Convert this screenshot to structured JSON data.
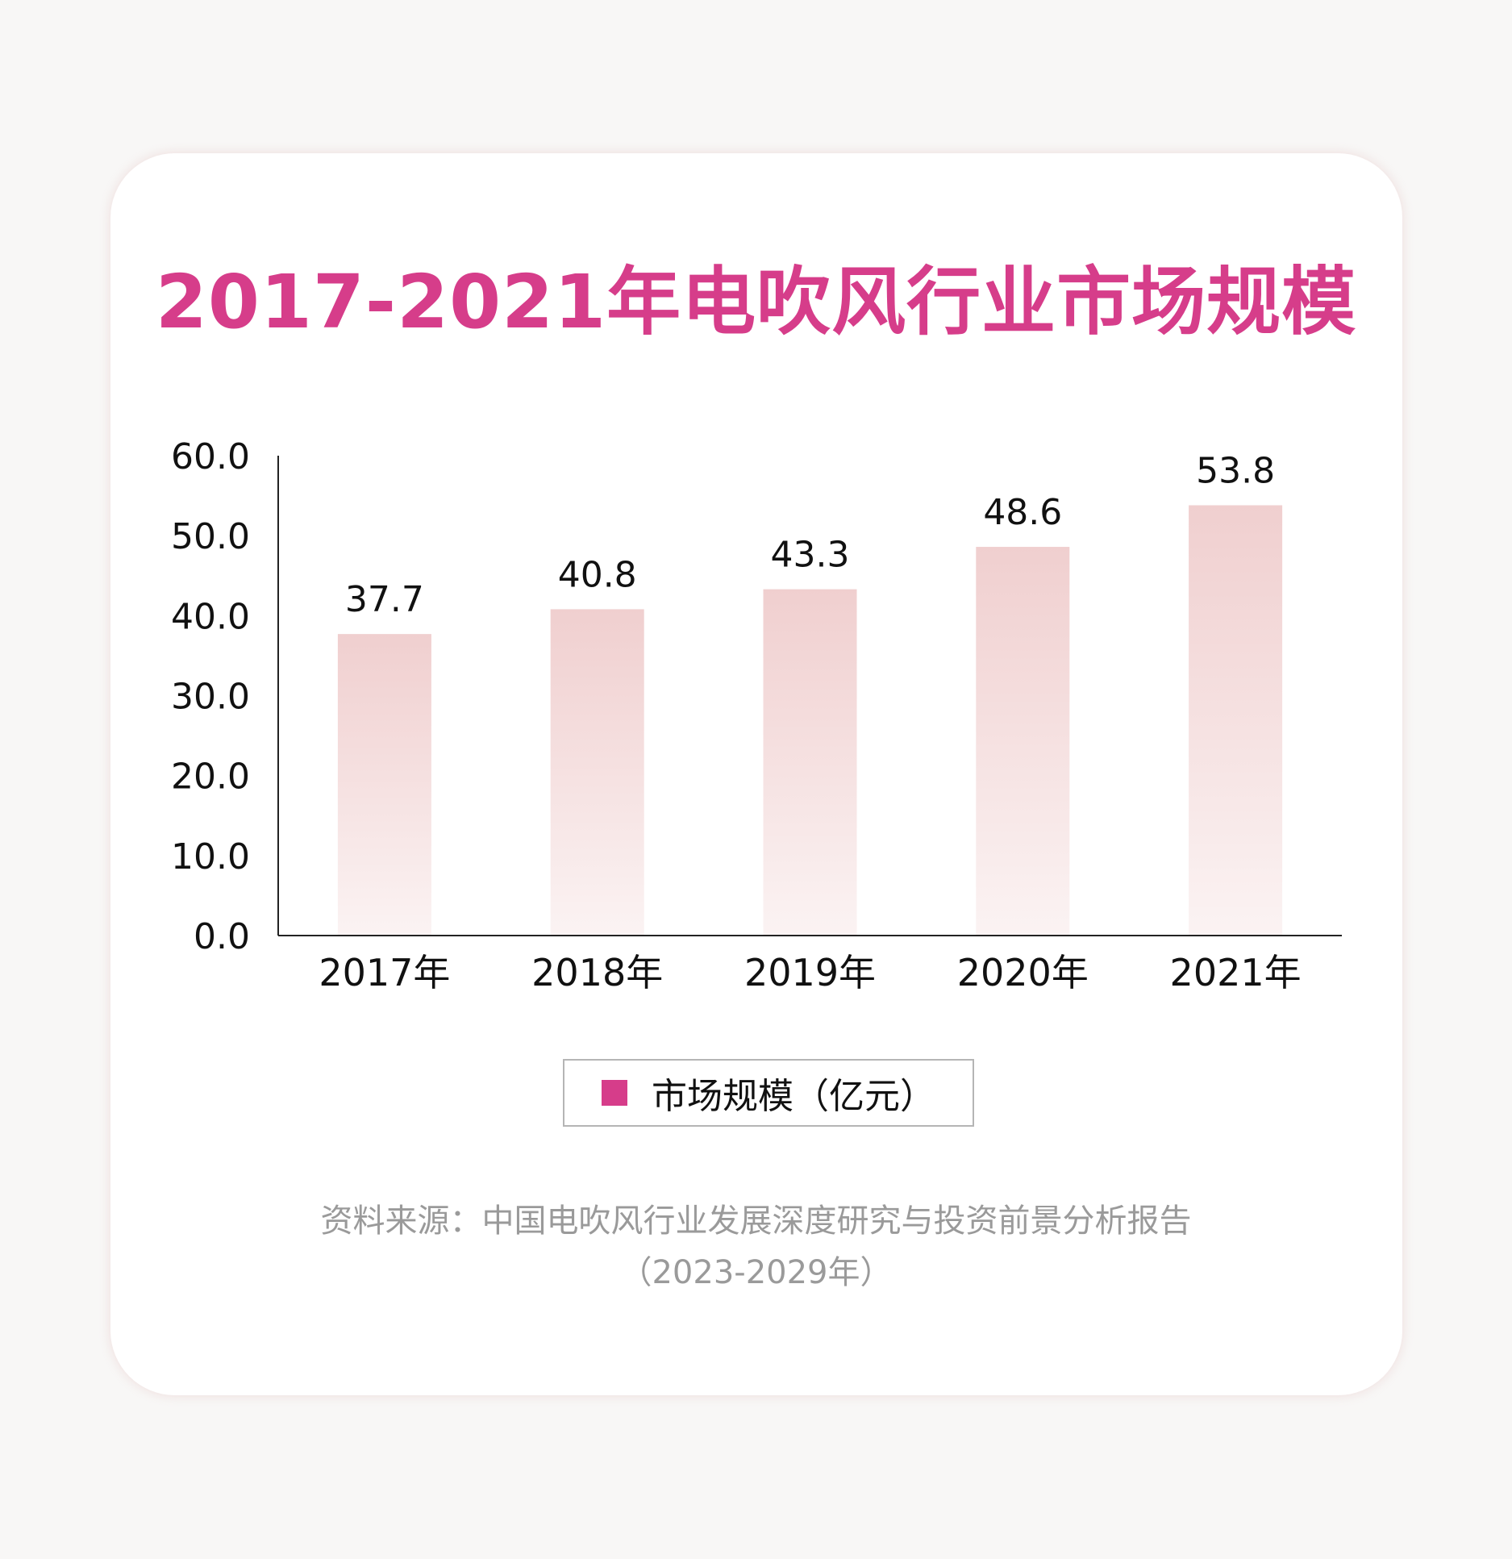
{
  "title": "2017-2021年电吹风行业市场规模",
  "chart_data": {
    "type": "bar",
    "categories": [
      "2017年",
      "2018年",
      "2019年",
      "2020年",
      "2021年"
    ],
    "series": [
      {
        "name": "市场规模（亿元）",
        "values": [
          37.7,
          40.8,
          43.3,
          48.6,
          53.8
        ]
      }
    ],
    "data_labels": [
      "37.7",
      "40.8",
      "43.3",
      "48.6",
      "53.8"
    ],
    "ylim": [
      0,
      60
    ],
    "yticks": [
      "0.0",
      "10.0",
      "20.0",
      "30.0",
      "40.0",
      "50.0",
      "60.0"
    ],
    "grid": false,
    "legend": "bottom",
    "colors": {
      "bar_top": "#f0cfcf",
      "bar_bottom": "#fbf3f3",
      "legend_swatch": "#d63d8a",
      "title": "#d63d8a"
    }
  },
  "legend": {
    "label": "市场规模（亿元）"
  },
  "source": {
    "line1": "资料来源：中国电吹风行业发展深度研究与投资前景分析报告",
    "line2": "（2023-2029年）"
  }
}
